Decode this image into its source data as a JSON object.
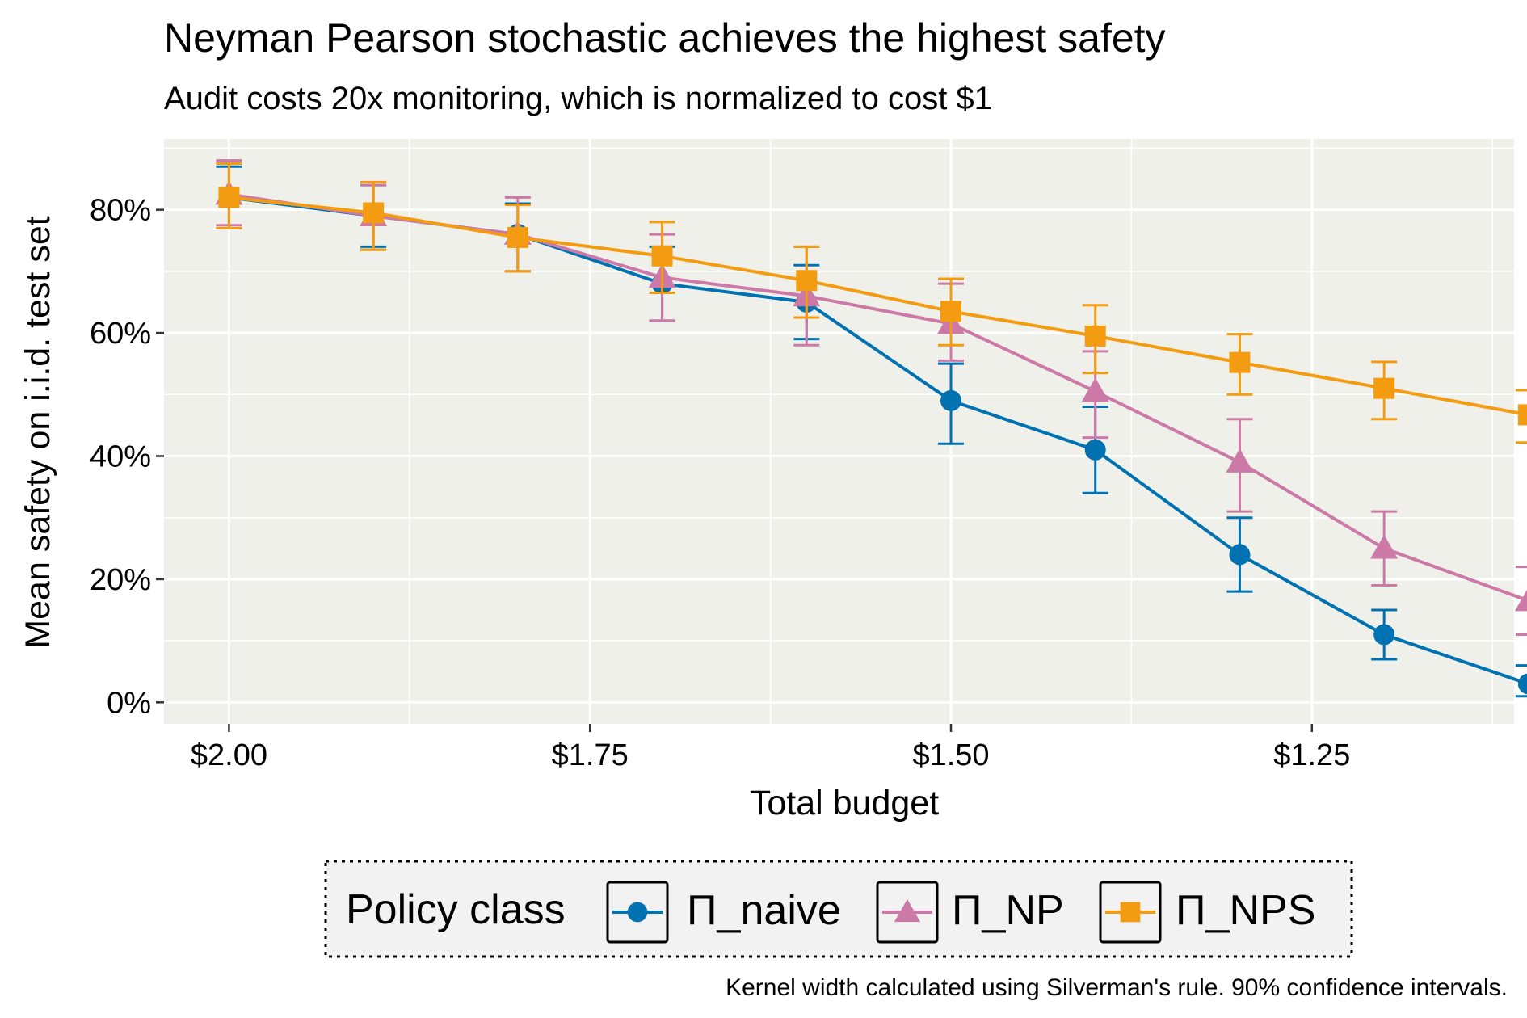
{
  "chart_data": {
    "type": "line",
    "title": "Neyman Pearson stochastic achieves the highest safety",
    "subtitle": "Audit costs 20x monitoring, which is normalized to cost $1",
    "xlabel": "Total budget",
    "ylabel": "Mean safety on i.i.d. test set",
    "caption": "Kernel width calculated using Silverman's rule. 90% confidence intervals.",
    "x_reversed": true,
    "xlim": [
      2.045,
      1.11
    ],
    "ylim": [
      -0.035,
      0.915
    ],
    "x_ticks": [
      2.0,
      1.75,
      1.5,
      1.25
    ],
    "x_tick_labels": [
      "$2.00",
      "$1.75",
      "$1.50",
      "$1.25"
    ],
    "y_ticks": [
      0,
      0.2,
      0.4,
      0.6,
      0.8
    ],
    "y_tick_labels": [
      "0%",
      "20%",
      "40%",
      "60%",
      "80%"
    ],
    "x": [
      2.0,
      1.9,
      1.8,
      1.7,
      1.6,
      1.5,
      1.4,
      1.3,
      1.2,
      1.1
    ],
    "legend_title": "Policy class",
    "series": [
      {
        "name": "Π_naive",
        "color": "#0072B2",
        "marker": "circle",
        "values": [
          0.82,
          0.79,
          0.76,
          0.68,
          0.65,
          0.49,
          0.41,
          0.24,
          0.11,
          0.03
        ],
        "ci_low": [
          0.77,
          0.74,
          0.7,
          0.62,
          0.59,
          0.42,
          0.34,
          0.18,
          0.07,
          0.01
        ],
        "ci_high": [
          0.87,
          0.84,
          0.81,
          0.74,
          0.71,
          0.55,
          0.48,
          0.3,
          0.15,
          0.06
        ]
      },
      {
        "name": "Π_NP",
        "color": "#CC79A7",
        "marker": "triangle",
        "values": [
          0.825,
          0.79,
          0.76,
          0.69,
          0.66,
          0.615,
          0.505,
          0.39,
          0.25,
          0.165
        ],
        "ci_low": [
          0.775,
          0.735,
          0.7,
          0.62,
          0.58,
          0.555,
          0.43,
          0.31,
          0.19,
          0.11
        ],
        "ci_high": [
          0.88,
          0.84,
          0.82,
          0.76,
          0.74,
          0.68,
          0.57,
          0.46,
          0.31,
          0.22
        ]
      },
      {
        "name": "Π_NPS",
        "color": "#F39C12",
        "marker": "square",
        "values": [
          0.82,
          0.795,
          0.755,
          0.725,
          0.685,
          0.635,
          0.595,
          0.552,
          0.51,
          0.467
        ],
        "ci_low": [
          0.77,
          0.735,
          0.7,
          0.665,
          0.625,
          0.58,
          0.535,
          0.5,
          0.46,
          0.422
        ],
        "ci_high": [
          0.875,
          0.845,
          0.808,
          0.78,
          0.74,
          0.688,
          0.645,
          0.598,
          0.553,
          0.507
        ]
      }
    ]
  }
}
